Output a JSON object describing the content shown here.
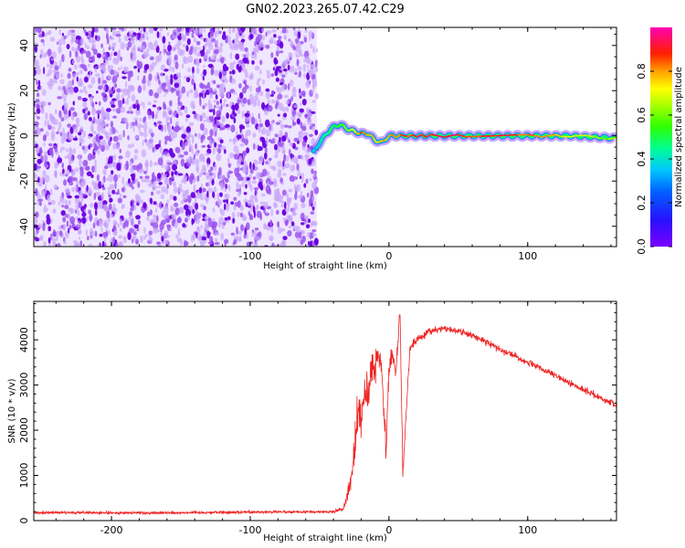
{
  "title": "GN02.2023.265.07.42.C29",
  "chart_data": [
    {
      "type": "heatmap",
      "panel": "spectrogram",
      "xlabel": "Height of straight line (km)",
      "ylabel": "Frequency (Hz)",
      "xlim": [
        -256,
        164
      ],
      "ylim": [
        -49,
        48
      ],
      "xticks": [
        -200,
        -100,
        0,
        100
      ],
      "yticks": [
        -40,
        -20,
        0,
        20,
        40
      ],
      "colorbar": {
        "label": "Normalized spectral amplitude",
        "range": [
          0.0,
          1.0
        ],
        "ticks": [
          "0.0",
          "0.2",
          "0.4",
          "0.6",
          "0.8"
        ],
        "colormap": "rainbow (purple-blue-cyan-green-yellow-red-magenta)"
      },
      "noise_region": {
        "x": [
          -256,
          -52
        ],
        "description": "scattered low-amplitude purple speckle across all frequencies"
      },
      "signal_ridge": {
        "x": [
          -55,
          -50,
          -45,
          -40,
          -35,
          -30,
          -25,
          -20,
          -15,
          -10,
          -5,
          0,
          10,
          30,
          60,
          100,
          130,
          164
        ],
        "freq": [
          -8,
          -3,
          1,
          4,
          5,
          3,
          2,
          1,
          1,
          -2,
          -3,
          0,
          0,
          0,
          0,
          0,
          0,
          -1
        ],
        "peak_amplitude": [
          0.3,
          0.4,
          0.45,
          0.5,
          0.55,
          0.6,
          0.7,
          0.85,
          0.8,
          0.75,
          0.8,
          0.8,
          0.85,
          0.9,
          0.9,
          0.85,
          0.7,
          0.6
        ]
      },
      "grid": false
    },
    {
      "type": "line",
      "panel": "snr",
      "xlabel": "Height of straight line (km)",
      "ylabel": "SNR (10 * v/v)",
      "xlim": [
        -256,
        164
      ],
      "ylim": [
        0,
        4850
      ],
      "xticks": [
        -200,
        -100,
        0,
        100
      ],
      "yticks": [
        0,
        1000,
        2000,
        3000,
        4000
      ],
      "series": [
        {
          "color": "#ee2222",
          "x": [
            -256,
            -200,
            -150,
            -100,
            -60,
            -40,
            -33,
            -30,
            -27,
            -25,
            -22,
            -20,
            -17,
            -15,
            -12,
            -10,
            -8,
            -5,
            -2,
            0,
            2,
            5,
            8,
            10,
            15,
            20,
            30,
            40,
            50,
            60,
            80,
            100,
            120,
            140,
            164
          ],
          "y": [
            180,
            170,
            175,
            190,
            190,
            200,
            260,
            500,
            1000,
            1500,
            2500,
            2200,
            3000,
            2600,
            3500,
            3200,
            3800,
            3300,
            1600,
            3400,
            3700,
            3300,
            4700,
            1000,
            3800,
            4000,
            4200,
            4250,
            4200,
            4100,
            3800,
            3500,
            3200,
            2900,
            2550
          ],
          "noise_amplitude": [
            60,
            60,
            60,
            60,
            60,
            60,
            80,
            250,
            500,
            700,
            900,
            900,
            800,
            800,
            700,
            700,
            600,
            600,
            600,
            500,
            400,
            350,
            300,
            300,
            200,
            180,
            150,
            140,
            140,
            140,
            140,
            140,
            140,
            140,
            140
          ]
        }
      ],
      "grid": false
    }
  ]
}
